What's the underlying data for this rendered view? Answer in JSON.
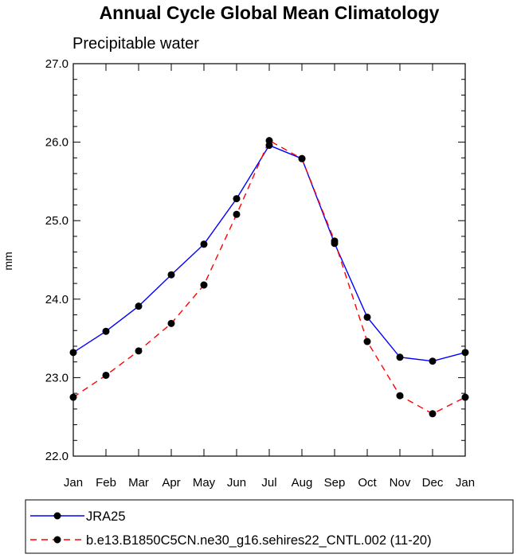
{
  "chart_data": {
    "type": "line",
    "title": "Annual Cycle Global Mean Climatology",
    "subtitle": "Precipitable water",
    "xlabel": "",
    "ylabel": "mm",
    "categories": [
      "Jan",
      "Feb",
      "Mar",
      "Apr",
      "May",
      "Jun",
      "Jul",
      "Aug",
      "Sep",
      "Oct",
      "Nov",
      "Dec",
      "Jan"
    ],
    "ylim": [
      22.0,
      27.0
    ],
    "yticks": [
      "22.0",
      "23.0",
      "24.0",
      "25.0",
      "26.0",
      "27.0"
    ],
    "grid": false,
    "legend_position": "bottom",
    "series": [
      {
        "name": "JRA25",
        "color": "#0000ff",
        "dash": "solid",
        "values": [
          23.32,
          23.59,
          23.91,
          24.31,
          24.7,
          25.28,
          25.96,
          25.79,
          24.71,
          23.77,
          23.26,
          23.21,
          23.32
        ]
      },
      {
        "name": "b.e13.B1850C5CN.ne30_g16.sehires22_CNTL.002 (11-20)",
        "color": "#ff0000",
        "dash": "dashed",
        "values": [
          22.75,
          23.03,
          23.34,
          23.69,
          24.18,
          25.08,
          26.02,
          25.79,
          24.74,
          23.46,
          22.77,
          22.54,
          22.75
        ]
      }
    ]
  }
}
